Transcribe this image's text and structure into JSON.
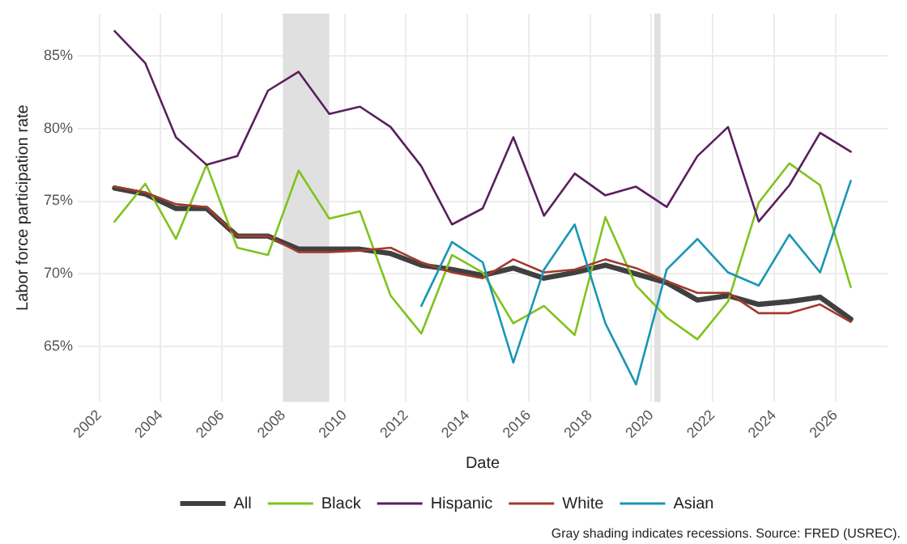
{
  "chart_data": {
    "type": "line",
    "xlabel": "Date",
    "ylabel": "Labor force participation rate",
    "x": [
      2002.5,
      2003.5,
      2004.5,
      2005.5,
      2006.5,
      2007.5,
      2008.5,
      2009.5,
      2010.5,
      2011.5,
      2012.5,
      2013.5,
      2014.5,
      2015.5,
      2016.5,
      2017.5,
      2018.5,
      2019.5,
      2020.5,
      2021.5,
      2022.5,
      2023.5,
      2024.5,
      2025.5,
      2026.5
    ],
    "series": [
      {
        "name": "All",
        "color": "#404040",
        "values": [
          75.9,
          75.5,
          74.5,
          74.5,
          72.6,
          72.6,
          71.7,
          71.7,
          71.7,
          71.4,
          70.6,
          70.3,
          69.9,
          70.4,
          69.7,
          70.1,
          70.6,
          70.0,
          69.4,
          68.2,
          68.5,
          67.9,
          68.1,
          68.4,
          66.9
        ]
      },
      {
        "name": "Black",
        "color": "#7fc31c",
        "values": [
          73.6,
          76.2,
          72.4,
          77.5,
          71.8,
          71.3,
          77.1,
          73.8,
          74.3,
          68.5,
          65.9,
          71.3,
          70.1,
          66.6,
          67.8,
          65.8,
          73.9,
          69.2,
          67.0,
          65.5,
          68.1,
          74.9,
          77.6,
          76.1,
          69.1
        ]
      },
      {
        "name": "Hispanic",
        "color": "#5b1f5e",
        "values": [
          86.7,
          84.5,
          79.4,
          77.5,
          78.1,
          82.6,
          83.9,
          81.0,
          81.5,
          80.1,
          77.4,
          73.4,
          74.5,
          79.4,
          74.0,
          76.9,
          75.4,
          76.0,
          74.6,
          78.1,
          80.1,
          73.6,
          76.1,
          79.7,
          78.4
        ]
      },
      {
        "name": "White",
        "color": "#a23b2a",
        "values": [
          76.0,
          75.6,
          74.8,
          74.6,
          72.6,
          72.6,
          71.5,
          71.5,
          71.6,
          71.8,
          70.8,
          70.1,
          69.7,
          71.0,
          70.1,
          70.3,
          71.0,
          70.4,
          69.5,
          68.7,
          68.7,
          67.3,
          67.3,
          67.9,
          66.7
        ]
      },
      {
        "name": "Asian",
        "color": "#1a96b5",
        "values": [
          null,
          null,
          null,
          null,
          null,
          null,
          null,
          null,
          null,
          null,
          67.8,
          72.2,
          70.8,
          63.9,
          70.3,
          73.4,
          66.6,
          62.4,
          70.3,
          72.4,
          70.1,
          69.2,
          72.7,
          70.1,
          76.4
        ]
      }
    ],
    "xlim": [
      2001.3,
      2027.7
    ],
    "xticks": [
      2002,
      2004,
      2006,
      2008,
      2010,
      2012,
      2014,
      2016,
      2018,
      2020,
      2022,
      2024,
      2026
    ],
    "ylim": [
      61.2,
      87.9
    ],
    "yticks": [
      {
        "value": 65,
        "label": "65%"
      },
      {
        "value": 70,
        "label": "70%"
      },
      {
        "value": 75,
        "label": "75%"
      },
      {
        "value": 80,
        "label": "80%"
      },
      {
        "value": 85,
        "label": "85%"
      }
    ],
    "bands": [
      {
        "axis": "x",
        "from": 2008.0,
        "to": 2009.5,
        "color": "#e0e0e0"
      },
      {
        "axis": "x",
        "from": 2020.1,
        "to": 2020.3,
        "color": "#e0e0e0"
      }
    ],
    "annotations": [
      "Gray shading indicates recessions. Source: FRED (USREC)."
    ],
    "grid": true,
    "legend": "bottom",
    "marker": "none",
    "line_style": "solid"
  }
}
